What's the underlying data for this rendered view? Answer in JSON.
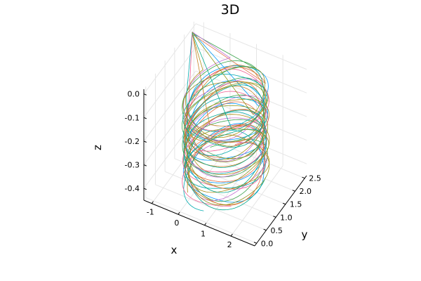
{
  "chart_data": {
    "type": "line",
    "title": "3D",
    "xlabel": "x",
    "ylabel": "y",
    "zlabel": "z",
    "xlim": [
      -1.3,
      2.9
    ],
    "ylim": [
      -0.1,
      2.6
    ],
    "zlim": [
      -0.45,
      0.02
    ],
    "x_ticks": [
      -1,
      0,
      1,
      2
    ],
    "x_tick_labels": [
      "-1",
      "0",
      "1",
      "2"
    ],
    "y_ticks": [
      0.0,
      0.5,
      1.0,
      1.5,
      2.0,
      2.5
    ],
    "y_tick_labels": [
      "0.0",
      "0.5",
      "1.0",
      "1.5",
      "2.0",
      "2.5"
    ],
    "z_ticks": [
      0.0,
      -0.1,
      -0.2,
      -0.3,
      -0.4
    ],
    "z_tick_labels": [
      "0.0",
      "-0.1",
      "-0.2",
      "-0.3",
      "-0.4"
    ],
    "grid": true,
    "legend": "none",
    "series_colors": [
      "#009AFA",
      "#E36F47",
      "#3EA44E",
      "#C371D2",
      "#AC8E18",
      "#00AAAE",
      "#ED5E93",
      "#C68225",
      "#00A98D",
      "#8E971D"
    ],
    "series": [
      {
        "center": [
          1.0,
          1.0
        ],
        "radius": [
          1.25,
          1.2
        ],
        "z_start": -0.01,
        "z_end": -0.36,
        "phase": 0.0
      },
      {
        "center": [
          1.02,
          1.0
        ],
        "radius": [
          1.22,
          1.18
        ],
        "z_start": -0.02,
        "z_end": -0.37,
        "phase": 0.7
      },
      {
        "center": [
          0.98,
          1.02
        ],
        "radius": [
          1.28,
          1.22
        ],
        "z_start": -0.015,
        "z_end": -0.355,
        "phase": 1.3
      },
      {
        "center": [
          1.0,
          0.98
        ],
        "radius": [
          1.2,
          1.25
        ],
        "z_start": -0.01,
        "z_end": -0.365,
        "phase": 2.1
      },
      {
        "center": [
          1.03,
          1.01
        ],
        "radius": [
          1.26,
          1.19
        ],
        "z_start": -0.02,
        "z_end": -0.36,
        "phase": 2.8
      },
      {
        "center": [
          0.97,
          1.0
        ],
        "radius": [
          1.23,
          1.21
        ],
        "z_start": -0.012,
        "z_end": -0.37,
        "phase": 3.5
      },
      {
        "center": [
          1.01,
          0.99
        ],
        "radius": [
          1.27,
          1.24
        ],
        "z_start": -0.018,
        "z_end": -0.358,
        "phase": 4.2
      },
      {
        "center": [
          0.99,
          1.03
        ],
        "radius": [
          1.21,
          1.2
        ],
        "z_start": -0.014,
        "z_end": -0.362,
        "phase": 4.9
      },
      {
        "center": [
          1.02,
          0.97
        ],
        "radius": [
          1.24,
          1.23
        ],
        "z_start": -0.016,
        "z_end": -0.368,
        "phase": 5.5
      },
      {
        "center": [
          1.0,
          1.01
        ],
        "radius": [
          1.29,
          1.18
        ],
        "z_start": -0.011,
        "z_end": -0.357,
        "phase": 6.0
      }
    ]
  }
}
